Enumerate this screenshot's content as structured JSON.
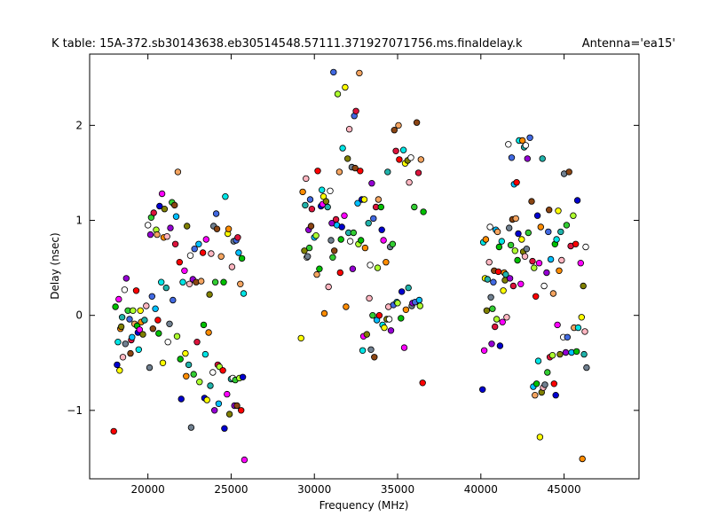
{
  "chart_data": {
    "type": "scatter",
    "title": "K table: 15A-372.sb30143638.eb30514548.57111.371927071756.ms.finaldelay.k",
    "antenna_label": "Antenna='ea15'",
    "xlabel": "Frequency (MHz)",
    "ylabel": "Delay (nsec)",
    "xlim": [
      16500,
      49500
    ],
    "ylim": [
      -1.72,
      2.75
    ],
    "x_ticks": [
      20000,
      25000,
      30000,
      35000,
      40000,
      45000
    ],
    "y_ticks": [
      -1,
      0,
      1,
      2
    ],
    "grid": false,
    "marker": "circle",
    "marker_edge_color": "#000000",
    "palette": [
      "#ff0000",
      "#00c000",
      "#0000d0",
      "#00e5e5",
      "#ff00ff",
      "#ffff00",
      "#ff8c00",
      "#808000",
      "#20b2aa",
      "#ffb6c1",
      "#ffffff",
      "#708090",
      "#9400d3",
      "#32cd32",
      "#4169e1",
      "#8b4513",
      "#dc143c",
      "#00bfff",
      "#adff2f",
      "#f4a460"
    ],
    "points": [
      [
        17950,
        -1.22
      ],
      [
        18050,
        0.09
      ],
      [
        18150,
        -0.52
      ],
      [
        18200,
        -0.28
      ],
      [
        18250,
        0.17
      ],
      [
        18300,
        -0.58
      ],
      [
        18350,
        -0.14
      ],
      [
        18400,
        -0.12
      ],
      [
        18450,
        -0.02
      ],
      [
        18500,
        -0.44
      ],
      [
        18600,
        0.27
      ],
      [
        18650,
        -0.3
      ],
      [
        18700,
        0.39
      ],
      [
        18800,
        0.05
      ],
      [
        18900,
        -0.04
      ],
      [
        18950,
        -0.4
      ],
      [
        19000,
        -0.26
      ],
      [
        19050,
        -0.23
      ],
      [
        19100,
        0.05
      ],
      [
        19200,
        -0.09
      ],
      [
        19300,
        0.26
      ],
      [
        19350,
        -0.11
      ],
      [
        19400,
        -0.18
      ],
      [
        19450,
        -0.36
      ],
      [
        19500,
        -0.15
      ],
      [
        19550,
        0.05
      ],
      [
        19600,
        -0.07
      ],
      [
        19700,
        -0.2
      ],
      [
        19800,
        -0.05
      ],
      [
        19900,
        0.1
      ],
      [
        20000,
        0.95
      ],
      [
        20100,
        -0.55
      ],
      [
        20150,
        0.85
      ],
      [
        20200,
        1.03
      ],
      [
        20250,
        0.2
      ],
      [
        20300,
        -0.14
      ],
      [
        20350,
        1.08
      ],
      [
        20450,
        0.07
      ],
      [
        20500,
        0.9
      ],
      [
        20550,
        0.85
      ],
      [
        20600,
        -0.05
      ],
      [
        20650,
        -0.19
      ],
      [
        20700,
        1.15
      ],
      [
        20800,
        0.35
      ],
      [
        20850,
        1.28
      ],
      [
        20900,
        -0.5
      ],
      [
        20950,
        0.82
      ],
      [
        21000,
        1.12
      ],
      [
        21100,
        0.29
      ],
      [
        21150,
        0.83
      ],
      [
        21200,
        -0.28
      ],
      [
        21300,
        -0.09
      ],
      [
        21350,
        0.92
      ],
      [
        21450,
        1.19
      ],
      [
        21500,
        0.16
      ],
      [
        21600,
        1.16
      ],
      [
        21650,
        0.75
      ],
      [
        21700,
        1.04
      ],
      [
        21750,
        -0.22
      ],
      [
        21800,
        1.51
      ],
      [
        21900,
        0.56
      ],
      [
        21950,
        -0.46
      ],
      [
        22000,
        -0.88
      ],
      [
        22100,
        0.35
      ],
      [
        22200,
        0.47
      ],
      [
        22250,
        -0.4
      ],
      [
        22300,
        -0.64
      ],
      [
        22350,
        0.94
      ],
      [
        22450,
        -0.52
      ],
      [
        22500,
        0.33
      ],
      [
        22550,
        0.63
      ],
      [
        22600,
        -1.18
      ],
      [
        22700,
        0.38
      ],
      [
        22750,
        -0.62
      ],
      [
        22800,
        0.7
      ],
      [
        22900,
        0.35
      ],
      [
        22950,
        -0.28
      ],
      [
        23050,
        0.75
      ],
      [
        23100,
        -0.7
      ],
      [
        23200,
        0.36
      ],
      [
        23300,
        0.66
      ],
      [
        23350,
        -0.1
      ],
      [
        23400,
        -0.87
      ],
      [
        23450,
        -0.41
      ],
      [
        23500,
        0.8
      ],
      [
        23550,
        -0.89
      ],
      [
        23650,
        -0.18
      ],
      [
        23700,
        0.22
      ],
      [
        23750,
        -0.74
      ],
      [
        23800,
        0.65
      ],
      [
        23900,
        -0.6
      ],
      [
        23950,
        0.94
      ],
      [
        24000,
        -1.0
      ],
      [
        24050,
        0.35
      ],
      [
        24100,
        1.07
      ],
      [
        24150,
        0.91
      ],
      [
        24200,
        -0.52
      ],
      [
        24250,
        -0.93
      ],
      [
        24300,
        -0.54
      ],
      [
        24400,
        0.62
      ],
      [
        24500,
        -0.58
      ],
      [
        24550,
        0.35
      ],
      [
        24600,
        -1.19
      ],
      [
        24650,
        1.25
      ],
      [
        24750,
        -0.83
      ],
      [
        24800,
        0.86
      ],
      [
        24850,
        0.91
      ],
      [
        24900,
        -1.04
      ],
      [
        25000,
        -0.67
      ],
      [
        25050,
        0.51
      ],
      [
        25100,
        -0.66
      ],
      [
        25150,
        0.78
      ],
      [
        25200,
        -0.95
      ],
      [
        25250,
        -0.68
      ],
      [
        25300,
        0.79
      ],
      [
        25350,
        -0.95
      ],
      [
        25400,
        0.82
      ],
      [
        25450,
        0.66
      ],
      [
        25500,
        -0.66
      ],
      [
        25550,
        0.33
      ],
      [
        25600,
        -1.0
      ],
      [
        25650,
        0.6
      ],
      [
        25700,
        -0.65
      ],
      [
        25750,
        0.23
      ],
      [
        25800,
        -1.52
      ],
      [
        29200,
        -0.24
      ],
      [
        29300,
        1.3
      ],
      [
        29400,
        0.68
      ],
      [
        29450,
        1.16
      ],
      [
        29500,
        1.44
      ],
      [
        29550,
        0.61
      ],
      [
        29600,
        0.62
      ],
      [
        29650,
        0.9
      ],
      [
        29700,
        0.71
      ],
      [
        29750,
        1.22
      ],
      [
        29800,
        0.94
      ],
      [
        29850,
        1.12
      ],
      [
        30000,
        0.82
      ],
      [
        30100,
        0.84
      ],
      [
        30150,
        0.43
      ],
      [
        30200,
        1.52
      ],
      [
        30300,
        0.49
      ],
      [
        30400,
        1.15
      ],
      [
        30450,
        1.32
      ],
      [
        30500,
        1.17
      ],
      [
        30550,
        1.25
      ],
      [
        30600,
        0.02
      ],
      [
        30700,
        1.2
      ],
      [
        30800,
        1.14
      ],
      [
        30850,
        0.3
      ],
      [
        30950,
        1.31
      ],
      [
        31000,
        0.79
      ],
      [
        31050,
        0.97
      ],
      [
        31100,
        0.61
      ],
      [
        31150,
        2.56
      ],
      [
        31200,
        0.68
      ],
      [
        31300,
        1.01
      ],
      [
        31350,
        0.95
      ],
      [
        31400,
        2.33
      ],
      [
        31500,
        1.51
      ],
      [
        31550,
        0.45
      ],
      [
        31600,
        0.8
      ],
      [
        31650,
        0.93
      ],
      [
        31700,
        1.76
      ],
      [
        31800,
        1.05
      ],
      [
        31850,
        2.4
      ],
      [
        31900,
        0.09
      ],
      [
        32000,
        1.65
      ],
      [
        32050,
        0.87
      ],
      [
        32100,
        1.96
      ],
      [
        32150,
        0.78
      ],
      [
        32250,
        1.56
      ],
      [
        32300,
        0.49
      ],
      [
        32350,
        0.87
      ],
      [
        32400,
        2.1
      ],
      [
        32450,
        1.55
      ],
      [
        32500,
        2.15
      ],
      [
        32600,
        1.18
      ],
      [
        32650,
        0.75
      ],
      [
        32700,
        2.55
      ],
      [
        32750,
        1.52
      ],
      [
        32800,
        0.79
      ],
      [
        32850,
        1.22
      ],
      [
        32900,
        -0.37
      ],
      [
        32950,
        -0.22
      ],
      [
        33000,
        1.22
      ],
      [
        33050,
        0.71
      ],
      [
        33150,
        -0.2
      ],
      [
        33250,
        0.97
      ],
      [
        33300,
        0.18
      ],
      [
        33350,
        0.53
      ],
      [
        33400,
        -0.36
      ],
      [
        33450,
        1.39
      ],
      [
        33500,
        0.0
      ],
      [
        33550,
        1.02
      ],
      [
        33600,
        -0.44
      ],
      [
        33700,
        1.14
      ],
      [
        33750,
        -0.05
      ],
      [
        33800,
        0.5
      ],
      [
        33850,
        1.22
      ],
      [
        33900,
        0.0
      ],
      [
        34000,
        1.14
      ],
      [
        34050,
        0.9
      ],
      [
        34100,
        -0.1
      ],
      [
        34150,
        0.79
      ],
      [
        34200,
        -0.13
      ],
      [
        34300,
        0.56
      ],
      [
        34350,
        -0.04
      ],
      [
        34400,
        1.51
      ],
      [
        34450,
        0.09
      ],
      [
        34500,
        -0.04
      ],
      [
        34550,
        0.72
      ],
      [
        34600,
        -0.16
      ],
      [
        34700,
        0.75
      ],
      [
        34750,
        0.11
      ],
      [
        34800,
        1.95
      ],
      [
        34900,
        1.73
      ],
      [
        34950,
        0.14
      ],
      [
        35000,
        0.13
      ],
      [
        35050,
        2.0
      ],
      [
        35100,
        1.64
      ],
      [
        35200,
        -0.03
      ],
      [
        35250,
        0.25
      ],
      [
        35350,
        1.74
      ],
      [
        35400,
        -0.34
      ],
      [
        35450,
        1.6
      ],
      [
        35500,
        0.06
      ],
      [
        35600,
        1.63
      ],
      [
        35650,
        0.29
      ],
      [
        35700,
        1.4
      ],
      [
        35800,
        1.66
      ],
      [
        35850,
        0.1
      ],
      [
        35900,
        0.13
      ],
      [
        36000,
        1.14
      ],
      [
        36050,
        0.14
      ],
      [
        36150,
        2.03
      ],
      [
        36250,
        1.5
      ],
      [
        36300,
        0.16
      ],
      [
        36350,
        0.1
      ],
      [
        36400,
        1.64
      ],
      [
        36500,
        -0.71
      ],
      [
        36550,
        1.09
      ],
      [
        40100,
        -0.78
      ],
      [
        40150,
        0.77
      ],
      [
        40200,
        -0.37
      ],
      [
        40250,
        0.39
      ],
      [
        40300,
        0.8
      ],
      [
        40350,
        0.05
      ],
      [
        40400,
        0.38
      ],
      [
        40500,
        0.56
      ],
      [
        40550,
        0.93
      ],
      [
        40600,
        0.19
      ],
      [
        40650,
        -0.3
      ],
      [
        40700,
        0.07
      ],
      [
        40750,
        0.35
      ],
      [
        40800,
        0.47
      ],
      [
        40850,
        -0.12
      ],
      [
        40900,
        0.9
      ],
      [
        40950,
        -0.04
      ],
      [
        41000,
        0.88
      ],
      [
        41050,
        0.46
      ],
      [
        41100,
        0.72
      ],
      [
        41150,
        -0.32
      ],
      [
        41250,
        0.78
      ],
      [
        41300,
        -0.07
      ],
      [
        41350,
        0.26
      ],
      [
        41400,
        0.45
      ],
      [
        41450,
        0.37
      ],
      [
        41500,
        0.43
      ],
      [
        41550,
        -0.02
      ],
      [
        41650,
        1.8
      ],
      [
        41700,
        0.92
      ],
      [
        41750,
        0.39
      ],
      [
        41800,
        0.74
      ],
      [
        41850,
        1.66
      ],
      [
        41900,
        1.01
      ],
      [
        41950,
        0.31
      ],
      [
        42000,
        1.38
      ],
      [
        42050,
        0.68
      ],
      [
        42100,
        1.02
      ],
      [
        42150,
        1.4
      ],
      [
        42200,
        0.58
      ],
      [
        42250,
        0.86
      ],
      [
        42300,
        1.84
      ],
      [
        42400,
        0.33
      ],
      [
        42450,
        0.8
      ],
      [
        42500,
        1.84
      ],
      [
        42550,
        0.67
      ],
      [
        42600,
        1.77
      ],
      [
        42650,
        0.62
      ],
      [
        42700,
        1.79
      ],
      [
        42750,
        0.7
      ],
      [
        42800,
        1.65
      ],
      [
        42850,
        0.87
      ],
      [
        42950,
        1.87
      ],
      [
        43050,
        1.2
      ],
      [
        43100,
        0.57
      ],
      [
        43150,
        -0.75
      ],
      [
        43200,
        0.5
      ],
      [
        43250,
        -0.84
      ],
      [
        43300,
        0.2
      ],
      [
        43350,
        -0.72
      ],
      [
        43400,
        1.05
      ],
      [
        43450,
        -0.48
      ],
      [
        43500,
        0.55
      ],
      [
        43550,
        -1.28
      ],
      [
        43600,
        0.93
      ],
      [
        43650,
        -0.81
      ],
      [
        43700,
        1.65
      ],
      [
        43750,
        -0.76
      ],
      [
        43800,
        0.31
      ],
      [
        43850,
        -0.73
      ],
      [
        43950,
        0.45
      ],
      [
        44000,
        -0.6
      ],
      [
        44050,
        0.88
      ],
      [
        44100,
        1.11
      ],
      [
        44150,
        -0.44
      ],
      [
        44200,
        0.59
      ],
      [
        44300,
        -0.42
      ],
      [
        44350,
        0.23
      ],
      [
        44400,
        -0.72
      ],
      [
        44450,
        0.75
      ],
      [
        44500,
        -0.84
      ],
      [
        44550,
        0.8
      ],
      [
        44600,
        -0.1
      ],
      [
        44650,
        1.1
      ],
      [
        44700,
        0.47
      ],
      [
        44750,
        -0.41
      ],
      [
        44800,
        0.88
      ],
      [
        44850,
        0.58
      ],
      [
        44950,
        -0.23
      ],
      [
        45000,
        1.49
      ],
      [
        45100,
        -0.39
      ],
      [
        45150,
        0.95
      ],
      [
        45200,
        -0.23
      ],
      [
        45300,
        1.51
      ],
      [
        45400,
        0.73
      ],
      [
        45450,
        -0.39
      ],
      [
        45550,
        1.05
      ],
      [
        45600,
        -0.13
      ],
      [
        45700,
        0.75
      ],
      [
        45750,
        -0.38
      ],
      [
        45800,
        1.21
      ],
      [
        45850,
        -0.13
      ],
      [
        46000,
        0.55
      ],
      [
        46050,
        -0.02
      ],
      [
        46100,
        -1.51
      ],
      [
        46150,
        0.31
      ],
      [
        46200,
        -0.41
      ],
      [
        46250,
        -0.17
      ],
      [
        46300,
        0.72
      ],
      [
        46350,
        -0.55
      ]
    ]
  }
}
